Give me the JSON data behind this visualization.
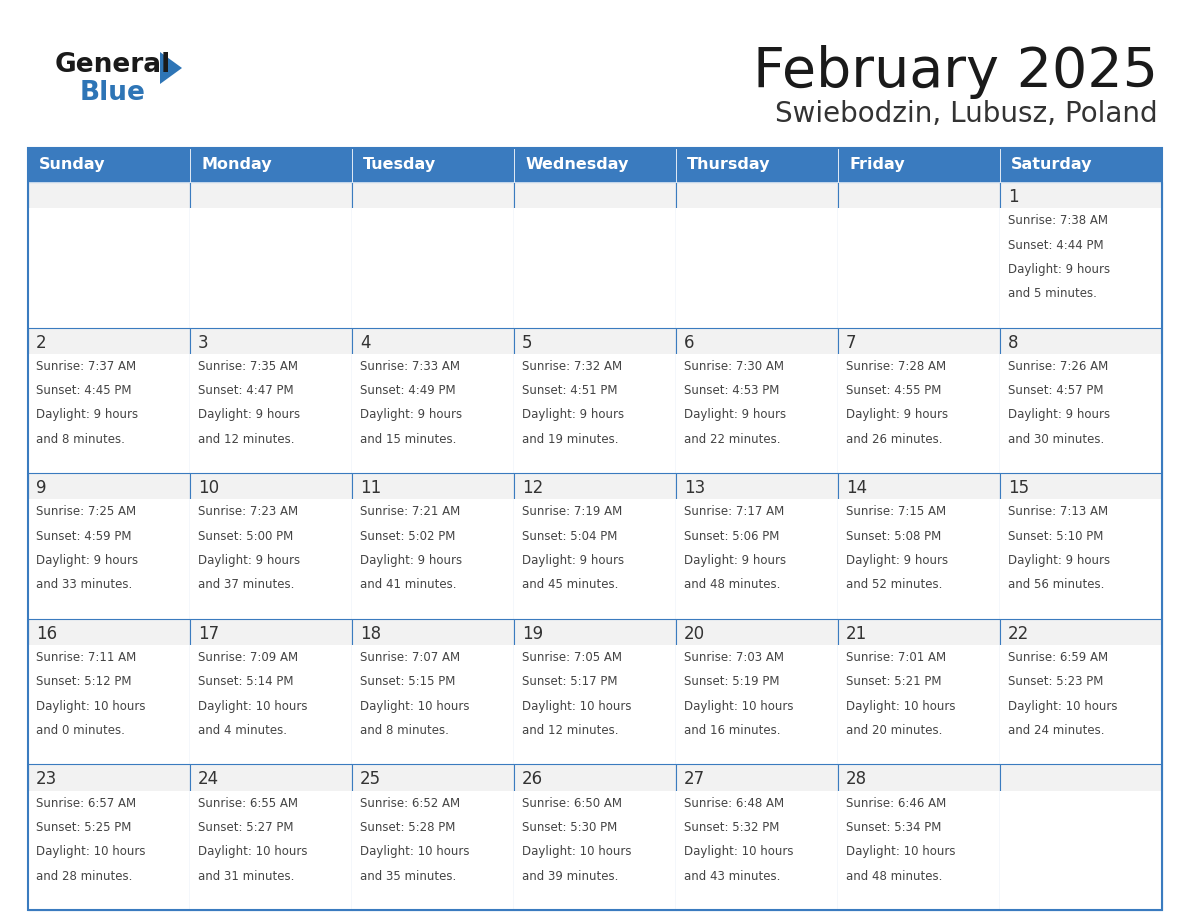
{
  "title": "February 2025",
  "subtitle": "Swiebodzin, Lubusz, Poland",
  "header_bg": "#3A7BBF",
  "header_text_color": "#FFFFFF",
  "cell_bg": "#F2F2F2",
  "cell_bg_white": "#FFFFFF",
  "border_color": "#3A7BBF",
  "day_number_color": "#333333",
  "info_text_color": "#444444",
  "title_color": "#1a1a1a",
  "subtitle_color": "#333333",
  "days_of_week": [
    "Sunday",
    "Monday",
    "Tuesday",
    "Wednesday",
    "Thursday",
    "Friday",
    "Saturday"
  ],
  "calendar_data": [
    [
      null,
      null,
      null,
      null,
      null,
      null,
      {
        "day": 1,
        "sunrise": "7:38 AM",
        "sunset": "4:44 PM",
        "daylight": "9 hours and 5 minutes."
      }
    ],
    [
      {
        "day": 2,
        "sunrise": "7:37 AM",
        "sunset": "4:45 PM",
        "daylight": "9 hours and 8 minutes."
      },
      {
        "day": 3,
        "sunrise": "7:35 AM",
        "sunset": "4:47 PM",
        "daylight": "9 hours and 12 minutes."
      },
      {
        "day": 4,
        "sunrise": "7:33 AM",
        "sunset": "4:49 PM",
        "daylight": "9 hours and 15 minutes."
      },
      {
        "day": 5,
        "sunrise": "7:32 AM",
        "sunset": "4:51 PM",
        "daylight": "9 hours and 19 minutes."
      },
      {
        "day": 6,
        "sunrise": "7:30 AM",
        "sunset": "4:53 PM",
        "daylight": "9 hours and 22 minutes."
      },
      {
        "day": 7,
        "sunrise": "7:28 AM",
        "sunset": "4:55 PM",
        "daylight": "9 hours and 26 minutes."
      },
      {
        "day": 8,
        "sunrise": "7:26 AM",
        "sunset": "4:57 PM",
        "daylight": "9 hours and 30 minutes."
      }
    ],
    [
      {
        "day": 9,
        "sunrise": "7:25 AM",
        "sunset": "4:59 PM",
        "daylight": "9 hours and 33 minutes."
      },
      {
        "day": 10,
        "sunrise": "7:23 AM",
        "sunset": "5:00 PM",
        "daylight": "9 hours and 37 minutes."
      },
      {
        "day": 11,
        "sunrise": "7:21 AM",
        "sunset": "5:02 PM",
        "daylight": "9 hours and 41 minutes."
      },
      {
        "day": 12,
        "sunrise": "7:19 AM",
        "sunset": "5:04 PM",
        "daylight": "9 hours and 45 minutes."
      },
      {
        "day": 13,
        "sunrise": "7:17 AM",
        "sunset": "5:06 PM",
        "daylight": "9 hours and 48 minutes."
      },
      {
        "day": 14,
        "sunrise": "7:15 AM",
        "sunset": "5:08 PM",
        "daylight": "9 hours and 52 minutes."
      },
      {
        "day": 15,
        "sunrise": "7:13 AM",
        "sunset": "5:10 PM",
        "daylight": "9 hours and 56 minutes."
      }
    ],
    [
      {
        "day": 16,
        "sunrise": "7:11 AM",
        "sunset": "5:12 PM",
        "daylight": "10 hours and 0 minutes."
      },
      {
        "day": 17,
        "sunrise": "7:09 AM",
        "sunset": "5:14 PM",
        "daylight": "10 hours and 4 minutes."
      },
      {
        "day": 18,
        "sunrise": "7:07 AM",
        "sunset": "5:15 PM",
        "daylight": "10 hours and 8 minutes."
      },
      {
        "day": 19,
        "sunrise": "7:05 AM",
        "sunset": "5:17 PM",
        "daylight": "10 hours and 12 minutes."
      },
      {
        "day": 20,
        "sunrise": "7:03 AM",
        "sunset": "5:19 PM",
        "daylight": "10 hours and 16 minutes."
      },
      {
        "day": 21,
        "sunrise": "7:01 AM",
        "sunset": "5:21 PM",
        "daylight": "10 hours and 20 minutes."
      },
      {
        "day": 22,
        "sunrise": "6:59 AM",
        "sunset": "5:23 PM",
        "daylight": "10 hours and 24 minutes."
      }
    ],
    [
      {
        "day": 23,
        "sunrise": "6:57 AM",
        "sunset": "5:25 PM",
        "daylight": "10 hours and 28 minutes."
      },
      {
        "day": 24,
        "sunrise": "6:55 AM",
        "sunset": "5:27 PM",
        "daylight": "10 hours and 31 minutes."
      },
      {
        "day": 25,
        "sunrise": "6:52 AM",
        "sunset": "5:28 PM",
        "daylight": "10 hours and 35 minutes."
      },
      {
        "day": 26,
        "sunrise": "6:50 AM",
        "sunset": "5:30 PM",
        "daylight": "10 hours and 39 minutes."
      },
      {
        "day": 27,
        "sunrise": "6:48 AM",
        "sunset": "5:32 PM",
        "daylight": "10 hours and 43 minutes."
      },
      {
        "day": 28,
        "sunrise": "6:46 AM",
        "sunset": "5:34 PM",
        "daylight": "10 hours and 48 minutes."
      },
      null
    ]
  ],
  "logo_general_color": "#1a1a1a",
  "logo_blue_color": "#2E75B6",
  "triangle_color": "#2E75B6"
}
